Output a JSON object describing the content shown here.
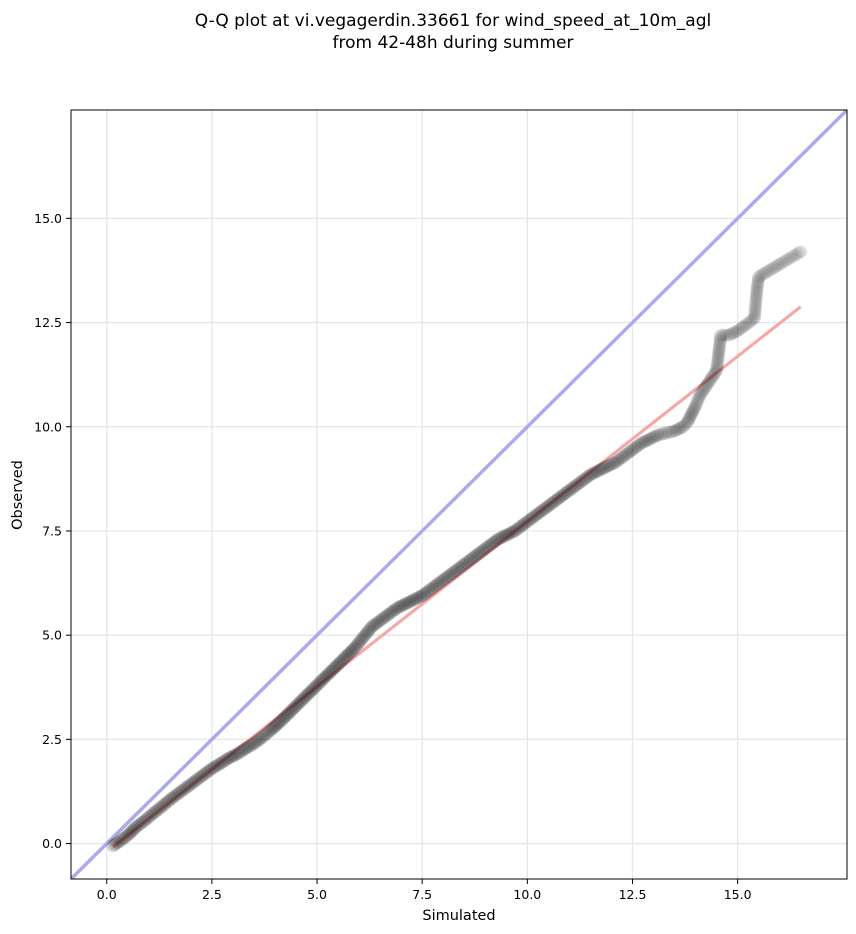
{
  "chart_data": {
    "type": "scatter",
    "title_lines": [
      "Q-Q plot at vi.vegagerdin.33661 for wind_speed_at_10m_agl",
      "from 42-48h during summer"
    ],
    "xlabel": "Simulated",
    "ylabel": "Observed",
    "xlim": [
      -0.85,
      17.6
    ],
    "ylim": [
      -0.85,
      17.6
    ],
    "xticks": [
      0.0,
      2.5,
      5.0,
      7.5,
      10.0,
      12.5,
      15.0
    ],
    "yticks": [
      0.0,
      2.5,
      5.0,
      7.5,
      10.0,
      12.5,
      15.0
    ],
    "xtick_labels": [
      "0.0",
      "2.5",
      "5.0",
      "7.5",
      "10.0",
      "12.5",
      "15.0"
    ],
    "ytick_labels": [
      "0.0",
      "2.5",
      "5.0",
      "7.5",
      "10.0",
      "12.5",
      "15.0"
    ],
    "grid": true,
    "identity_line": {
      "color": "#aaaaf0",
      "x": [
        -0.85,
        17.6
      ],
      "y": [
        -0.85,
        17.6
      ]
    },
    "fit_line": {
      "color": "#f4a8a8",
      "x": [
        0.15,
        16.5
      ],
      "y": [
        -0.08,
        12.88
      ]
    },
    "point_color": "#000000",
    "points": {
      "x": [
        0.15,
        0.3,
        0.5,
        0.7,
        0.9,
        1.1,
        1.3,
        1.5,
        1.7,
        1.9,
        2.1,
        2.3,
        2.5,
        2.7,
        2.9,
        3.1,
        3.3,
        3.5,
        3.7,
        3.9,
        4.1,
        4.3,
        4.5,
        4.7,
        4.9,
        5.1,
        5.3,
        5.5,
        5.7,
        5.9,
        6.1,
        6.3,
        6.5,
        6.7,
        6.9,
        7.1,
        7.3,
        7.5,
        7.7,
        7.9,
        8.1,
        8.3,
        8.5,
        8.7,
        8.9,
        9.1,
        9.3,
        9.5,
        9.7,
        9.9,
        10.1,
        10.3,
        10.5,
        10.7,
        10.9,
        11.1,
        11.3,
        11.5,
        11.7,
        11.9,
        12.1,
        12.3,
        12.5,
        12.7,
        12.9,
        13.1,
        13.3,
        13.5,
        13.7,
        13.8,
        13.9,
        14.0,
        14.1,
        14.2,
        14.3,
        14.4,
        14.5,
        14.6,
        14.8,
        15.0,
        15.4,
        15.45,
        15.5,
        16.5
      ],
      "y": [
        -0.05,
        0.05,
        0.2,
        0.4,
        0.55,
        0.72,
        0.88,
        1.05,
        1.2,
        1.35,
        1.5,
        1.65,
        1.8,
        1.92,
        2.05,
        2.15,
        2.28,
        2.4,
        2.55,
        2.72,
        2.9,
        3.1,
        3.3,
        3.5,
        3.7,
        3.9,
        4.1,
        4.3,
        4.5,
        4.7,
        4.95,
        5.2,
        5.35,
        5.5,
        5.65,
        5.75,
        5.85,
        5.95,
        6.1,
        6.25,
        6.4,
        6.55,
        6.7,
        6.85,
        7.0,
        7.15,
        7.3,
        7.4,
        7.5,
        7.65,
        7.8,
        7.95,
        8.1,
        8.25,
        8.4,
        8.55,
        8.7,
        8.85,
        8.95,
        9.05,
        9.15,
        9.3,
        9.45,
        9.6,
        9.7,
        9.8,
        9.85,
        9.9,
        10.0,
        10.1,
        10.3,
        10.5,
        10.75,
        10.9,
        11.05,
        11.2,
        11.35,
        12.2,
        12.2,
        12.3,
        12.6,
        13.2,
        13.6,
        14.2
      ]
    }
  }
}
